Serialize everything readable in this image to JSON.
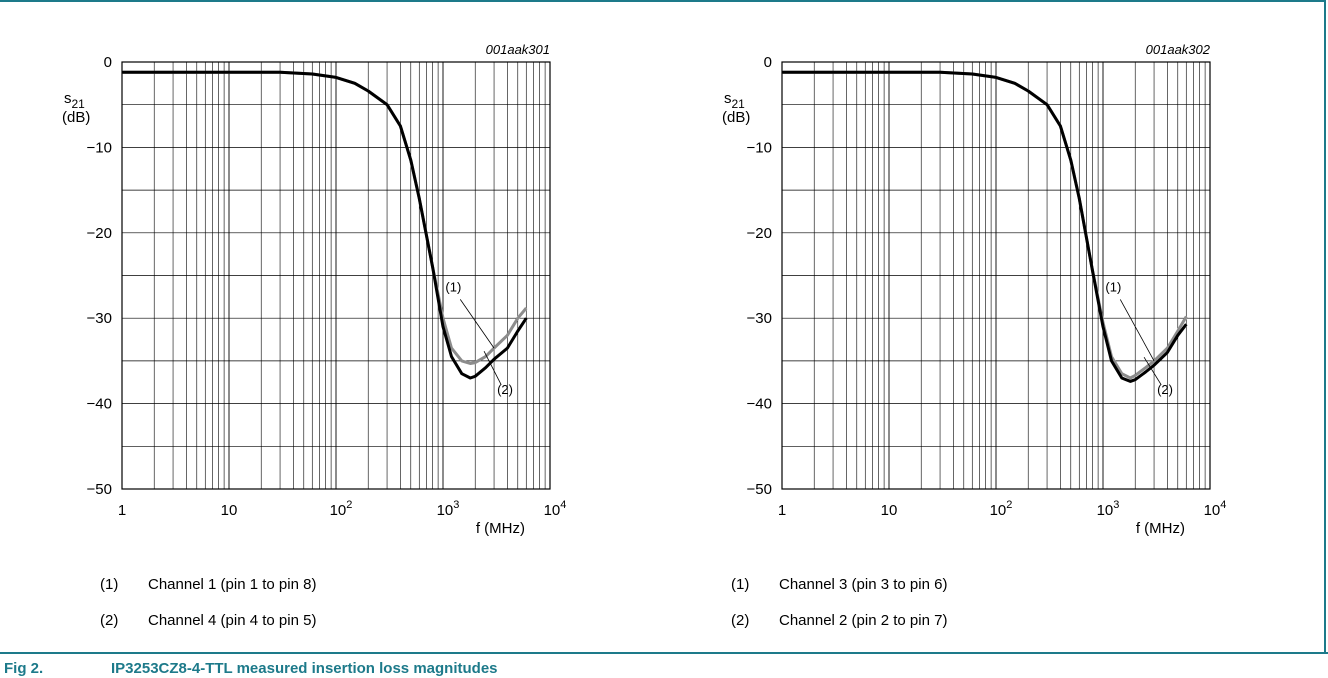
{
  "figure": {
    "label": "Fig 2.",
    "title": "IP3253CZ8-4-TTL measured insertion loss magnitudes"
  },
  "colors": {
    "accent": "#1d7a8a",
    "series1": "#8c8c8c",
    "series2": "#000000"
  },
  "chart_data": [
    {
      "type": "line",
      "id_label": "001aak301",
      "ylabel": "s21",
      "ylabel_unit": "(dB)",
      "xlabel": "f (MHz)",
      "x_scale": "log",
      "xlim": [
        1,
        10000
      ],
      "ylim": [
        -50,
        0
      ],
      "x_ticks": [
        "1",
        "10",
        "10^2",
        "10^3",
        "10^4"
      ],
      "y_ticks": [
        "0",
        "−10",
        "−20",
        "−30",
        "−40",
        "−50"
      ],
      "grid": true,
      "annotations": [
        "(1)",
        "(2)"
      ],
      "series": [
        {
          "name": "(1)",
          "x": [
            1,
            10,
            30,
            60,
            100,
            150,
            200,
            300,
            400,
            500,
            600,
            800,
            1000,
            1200,
            1500,
            1800,
            2000,
            2500,
            3000,
            4000,
            5000,
            6000
          ],
          "y": [
            -1.2,
            -1.2,
            -1.2,
            -1.4,
            -1.8,
            -2.5,
            -3.4,
            -5.0,
            -7.5,
            -11.5,
            -16.0,
            -24.0,
            -30.0,
            -33.5,
            -35.0,
            -35.3,
            -35.2,
            -34.5,
            -33.5,
            -32.0,
            -30.0,
            -28.8
          ]
        },
        {
          "name": "(2)",
          "x": [
            1,
            10,
            30,
            60,
            100,
            150,
            200,
            300,
            400,
            500,
            600,
            800,
            1000,
            1200,
            1500,
            1800,
            2000,
            2500,
            3000,
            4000,
            5000,
            6000
          ],
          "y": [
            -1.2,
            -1.2,
            -1.2,
            -1.4,
            -1.8,
            -2.5,
            -3.4,
            -5.0,
            -7.5,
            -11.5,
            -16.0,
            -24.0,
            -31.0,
            -34.5,
            -36.5,
            -37.0,
            -36.8,
            -35.8,
            -34.8,
            -33.5,
            -31.5,
            -30.0
          ]
        }
      ]
    },
    {
      "type": "line",
      "id_label": "001aak302",
      "ylabel": "s21",
      "ylabel_unit": "(dB)",
      "xlabel": "f (MHz)",
      "x_scale": "log",
      "xlim": [
        1,
        10000
      ],
      "ylim": [
        -50,
        0
      ],
      "x_ticks": [
        "1",
        "10",
        "10^2",
        "10^3",
        "10^4"
      ],
      "y_ticks": [
        "0",
        "−10",
        "−20",
        "−30",
        "−40",
        "−50"
      ],
      "grid": true,
      "annotations": [
        "(1)",
        "(2)"
      ],
      "series": [
        {
          "name": "(1)",
          "x": [
            1,
            10,
            30,
            60,
            100,
            150,
            200,
            300,
            400,
            500,
            600,
            800,
            1000,
            1200,
            1500,
            1800,
            2000,
            2500,
            3000,
            4000,
            5000,
            6000
          ],
          "y": [
            -1.2,
            -1.2,
            -1.2,
            -1.4,
            -1.8,
            -2.5,
            -3.4,
            -5.0,
            -7.5,
            -11.5,
            -16.0,
            -24.5,
            -30.5,
            -34.5,
            -36.5,
            -37.0,
            -36.7,
            -35.8,
            -35.0,
            -33.5,
            -31.5,
            -29.8
          ]
        },
        {
          "name": "(2)",
          "x": [
            1,
            10,
            30,
            60,
            100,
            150,
            200,
            300,
            400,
            500,
            600,
            800,
            1000,
            1200,
            1500,
            1800,
            2000,
            2500,
            3000,
            4000,
            5000,
            6000
          ],
          "y": [
            -1.2,
            -1.2,
            -1.2,
            -1.4,
            -1.8,
            -2.5,
            -3.4,
            -5.0,
            -7.5,
            -11.5,
            -16.0,
            -24.5,
            -31.0,
            -35.0,
            -37.0,
            -37.4,
            -37.2,
            -36.3,
            -35.5,
            -34.0,
            -32.0,
            -30.7
          ]
        }
      ]
    }
  ],
  "legends": [
    [
      {
        "num": "(1)",
        "text": "Channel 1 (pin 1 to pin 8)"
      },
      {
        "num": "(2)",
        "text": "Channel 4 (pin 4 to pin 5)"
      }
    ],
    [
      {
        "num": "(1)",
        "text": "Channel 3 (pin 3 to pin 6)"
      },
      {
        "num": "(2)",
        "text": "Channel 2 (pin 2 to pin 7)"
      }
    ]
  ]
}
